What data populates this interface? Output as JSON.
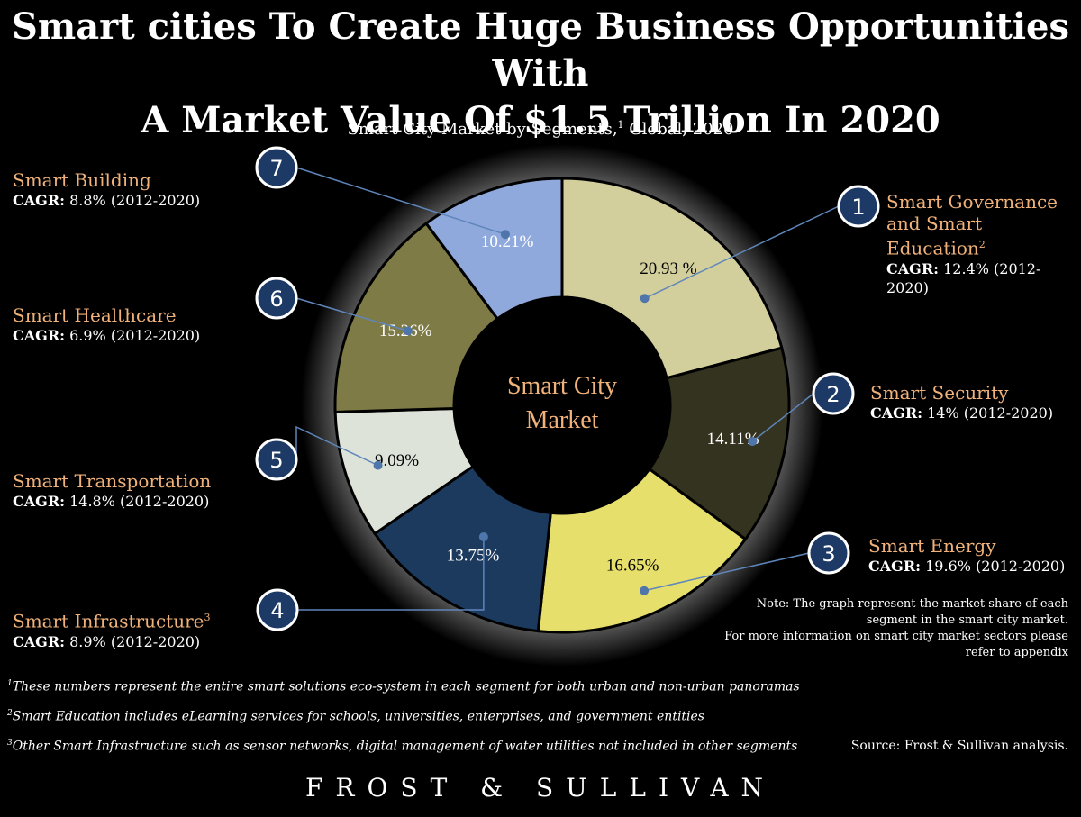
{
  "title": "Smart cities To Create Huge Business Opportunities With A Market Value Of $1.5 Trillion In 2020",
  "title_line1": "Smart cities To Create Huge Business Opportunities With",
  "title_line2": "A Market Value Of $1.5 Trillion In 2020",
  "subtitle_main": "Smart City Market by Segments,",
  "subtitle_sup": "1",
  "subtitle_tail": " Global, 2020",
  "center_line1": "Smart City",
  "center_line2": "Market",
  "cagr_label": "CAGR:",
  "segments": [
    {
      "num": "1",
      "name": "Smart Governance and Smart Education",
      "name_line1": "Smart Governance",
      "name_line2": "and Smart Education",
      "name_sup": "2",
      "cagr_value": " 12.4% (2012-",
      "cagr_value2": "2020)"
    },
    {
      "num": "2",
      "name": "Smart Security",
      "cagr_value": " 14% (2012-2020)"
    },
    {
      "num": "3",
      "name": "Smart Energy",
      "cagr_value": " 19.6% (2012-2020)"
    },
    {
      "num": "4",
      "name": "Smart Infrastructure",
      "name_sup": "3",
      "cagr_value": " 8.9% (2012-2020)"
    },
    {
      "num": "5",
      "name": "Smart Transportation",
      "cagr_value": " 14.8% (2012-2020)"
    },
    {
      "num": "6",
      "name": "Smart Healthcare",
      "cagr_value": " 6.9% (2012-2020)"
    },
    {
      "num": "7",
      "name": "Smart Building",
      "cagr_value": " 8.8% (2012-2020)"
    }
  ],
  "note_lines": [
    "Note: The graph represent the market share of each",
    "segment in the smart city market.",
    "For more information on smart city market sectors please",
    "refer to appendix"
  ],
  "footnotes": [
    {
      "sup": "1",
      "text": "These numbers represent the entire smart solutions eco-system in each segment for both urban and non-urban panoramas"
    },
    {
      "sup": "2",
      "text": "Smart Education includes eLearning services for schools, universities, enterprises, and government entities"
    },
    {
      "sup": "3",
      "text": "Other Smart Infrastructure such as sensor networks,  digital management of water utilities  not included in other segments"
    }
  ],
  "source": "Source: Frost & Sullivan analysis.",
  "brand": "FROST & SULLIVAN",
  "chart_data": {
    "type": "pie",
    "donut": true,
    "title": "Smart City Market by Segments, Global, 2020",
    "center_label": "Smart City Market",
    "categories": [
      "Smart Governance and Smart Education",
      "Smart Security",
      "Smart Energy",
      "Smart Infrastructure",
      "Smart Transportation",
      "Smart Healthcare",
      "Smart Building"
    ],
    "values": [
      20.93,
      14.11,
      16.65,
      13.75,
      9.09,
      15.26,
      10.21
    ],
    "value_labels": [
      "20.93 %",
      "14.11%",
      "16.65%",
      "13.75%",
      "9.09%",
      "15.26%",
      "10.21%"
    ],
    "colors": [
      "#d3cf9c",
      "#34331f",
      "#e6df6c",
      "#1b3a5e",
      "#dde3d9",
      "#7e7b46",
      "#8fa9dd"
    ],
    "label_colors": [
      "#000000",
      "#ffffff",
      "#000000",
      "#ffffff",
      "#000000",
      "#ffffff",
      "#ffffff"
    ]
  }
}
